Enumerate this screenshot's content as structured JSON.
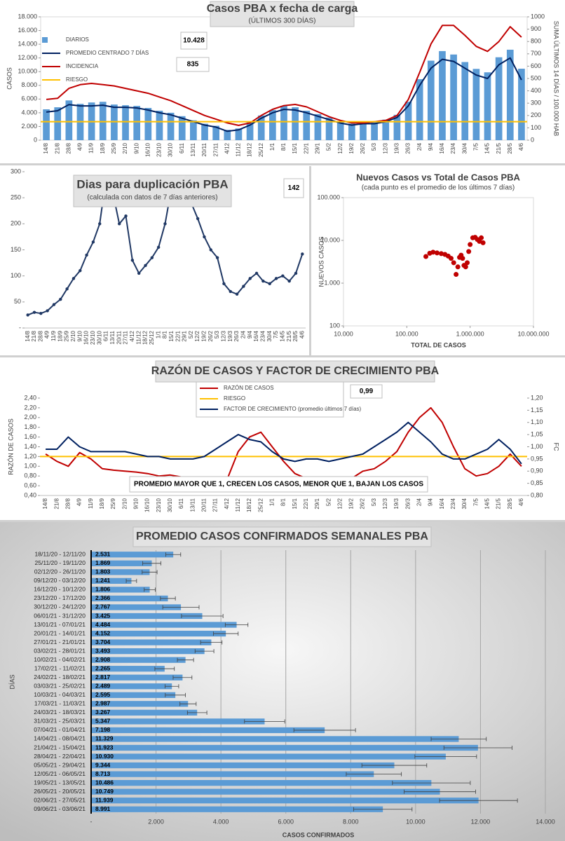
{
  "chart_data": [
    {
      "type": "combo",
      "title": "Casos  PBA x fecha de carga",
      "subtitle": "(ÚLTIMOS 300 DÍAS)",
      "annotations": [
        "10.428",
        "835"
      ],
      "ylabel": "CASOS",
      "y2label": "SUMA ÚLTIMOS 14 DÍAS / 100.000 HAB",
      "categories": [
        "14/8",
        "21/8",
        "28/8",
        "4/9",
        "11/9",
        "18/9",
        "25/9",
        "2/10",
        "9/10",
        "16/10",
        "23/10",
        "30/10",
        "6/11",
        "13/11",
        "20/11",
        "27/11",
        "4/12",
        "11/12",
        "18/12",
        "25/12",
        "1/1",
        "8/1",
        "15/1",
        "22/1",
        "29/1",
        "5/2",
        "12/2",
        "19/2",
        "26/2",
        "5/3",
        "12/3",
        "19/3",
        "26/3",
        "2/4",
        "9/4",
        "16/4",
        "23/4",
        "30/4",
        "7/5",
        "14/5",
        "21/5",
        "28/5",
        "4/6"
      ],
      "ylim": [
        0,
        18000
      ],
      "yticks": [
        0,
        {
          "value": 2000,
          "label": "2.000"
        },
        {
          "value": 4000,
          "label": "4.000"
        },
        {
          "value": 6000,
          "label": "6.000"
        },
        {
          "value": 8000,
          "label": "8.000"
        },
        {
          "value": 10000,
          "label": "10.000"
        },
        {
          "value": 12000,
          "label": "12.000"
        },
        {
          "value": 14000,
          "label": "14.000"
        },
        {
          "value": 16000,
          "label": "16.000"
        },
        {
          "value": 18000,
          "label": "18.000"
        }
      ],
      "y2lim": [
        0,
        1000
      ],
      "y2ticks": [
        0,
        100,
        200,
        300,
        400,
        500,
        600,
        700,
        800,
        900,
        1000
      ],
      "series": [
        {
          "name": "DIARIOS",
          "type": "bar",
          "color": "#5b9bd5",
          "values": [
            4500,
            4800,
            5800,
            5300,
            5500,
            5600,
            5200,
            5100,
            5000,
            4700,
            4300,
            4000,
            3500,
            2900,
            2400,
            2100,
            1500,
            1700,
            2600,
            3600,
            4400,
            5000,
            4800,
            4300,
            3800,
            3300,
            2800,
            2400,
            2700,
            2600,
            3000,
            3700,
            5600,
            8900,
            11600,
            13000,
            12500,
            11400,
            10400,
            9900,
            12100,
            13200,
            10428
          ]
        },
        {
          "name": "PROMEDIO CENTRADO 7 DÍAS",
          "type": "line",
          "color": "#002060",
          "values": [
            4100,
            4300,
            5200,
            5000,
            5000,
            5100,
            4800,
            4800,
            4700,
            4400,
            4000,
            3700,
            3200,
            2700,
            2200,
            1900,
            1300,
            1500,
            2200,
            3200,
            4000,
            4500,
            4400,
            4000,
            3500,
            3000,
            2500,
            2200,
            2400,
            2400,
            2700,
            3300,
            5000,
            8000,
            10500,
            11800,
            11500,
            10500,
            9500,
            9000,
            11000,
            12000,
            8800
          ]
        },
        {
          "name": "INCIDENCIA",
          "type": "line",
          "axis": "y2",
          "color": "#c00000",
          "values": [
            330,
            340,
            420,
            450,
            460,
            450,
            440,
            420,
            400,
            380,
            350,
            320,
            280,
            240,
            200,
            170,
            140,
            120,
            140,
            200,
            250,
            280,
            290,
            270,
            230,
            190,
            160,
            140,
            140,
            150,
            160,
            200,
            330,
            550,
            780,
            930,
            930,
            850,
            760,
            720,
            800,
            920,
            835
          ]
        },
        {
          "name": "RIESGO",
          "color": "#ffc000",
          "axis": "y2",
          "value": 150
        }
      ]
    },
    {
      "type": "line",
      "title": "Dias para duplicación PBA",
      "subtitle": "(calculada con datos de 7 días anteriores)",
      "annotations": [
        "142"
      ],
      "categories": [
        "14/8",
        "21/8",
        "28/8",
        "4/9",
        "11/9",
        "18/9",
        "25/9",
        "2/10",
        "9/10",
        "16/10",
        "23/10",
        "30/10",
        "6/11",
        "13/11",
        "20/11",
        "27/11",
        "4/12",
        "11/12",
        "18/12",
        "25/12",
        "1/1",
        "8/1",
        "15/1",
        "22/1",
        "29/1",
        "5/2",
        "12/2",
        "19/2",
        "26/2",
        "5/3",
        "12/3",
        "19/3",
        "26/3",
        "2/4",
        "9/4",
        "16/4",
        "23/4",
        "30/4",
        "7/5",
        "14/5",
        "21/5",
        "28/5",
        "4/6"
      ],
      "ylim": [
        0,
        300
      ],
      "yticks": [
        {
          "value": 0,
          "label": "-"
        },
        50,
        100,
        150,
        200,
        250,
        300
      ],
      "series": [
        {
          "color": "#203864",
          "markers": true,
          "values": [
            25,
            30,
            28,
            33,
            45,
            55,
            75,
            95,
            110,
            140,
            165,
            200,
            290,
            260,
            200,
            215,
            130,
            105,
            120,
            135,
            155,
            200,
            270,
            290,
            260,
            240,
            210,
            175,
            150,
            135,
            85,
            70,
            65,
            80,
            95,
            105,
            90,
            85,
            95,
            100,
            90,
            105,
            142
          ]
        }
      ]
    },
    {
      "type": "scatter",
      "title": "Nuevos Casos vs Total de Casos PBA",
      "subtitle": "(cada punto es el promedio de los últimos 7 días)",
      "xlabel": "TOTAL DE CASOS",
      "ylabel": "NUEVOS CASOS",
      "log_x": true,
      "log_y": true,
      "color": "#c00000",
      "xlim": [
        10000,
        10000000
      ],
      "xticks": [
        {
          "value": 10000,
          "label": "10.000"
        },
        {
          "value": 100000,
          "label": "100.000"
        },
        {
          "value": 1000000,
          "label": "1.000.000"
        },
        {
          "value": 10000000,
          "label": "10.000.000"
        }
      ],
      "ylim": [
        100,
        100000
      ],
      "yticks": [
        100,
        {
          "value": 1000,
          "label": "1.000"
        },
        {
          "value": 10000,
          "label": "10.000"
        },
        {
          "value": 100000,
          "label": "100.000"
        }
      ],
      "x": [
        200000,
        230000,
        260000,
        300000,
        350000,
        400000,
        450000,
        500000,
        550000,
        600000,
        640000,
        680000,
        720000,
        760000,
        800000,
        850000,
        900000,
        950000,
        1000000,
        1100000,
        1200000,
        1300000,
        1400000,
        1500000,
        1600000
      ],
      "y": [
        4200,
        5000,
        5300,
        5100,
        4900,
        4700,
        4300,
        3800,
        3000,
        1600,
        2400,
        4000,
        4500,
        3800,
        2600,
        2400,
        3000,
        5500,
        8000,
        11500,
        11800,
        10500,
        9500,
        11500,
        8800
      ]
    },
    {
      "type": "line",
      "title": "RAZÓN DE CASOS Y FACTOR DE CRECIMIENTO PBA",
      "annotations": [
        "0,99",
        "PROMEDIO MAYOR QUE 1, CRECEN LOS CASOS, MENOR QUE 1, BAJAN LOS CASOS"
      ],
      "ylabel": "RAZÓN DE CASOS",
      "y2label": "FC",
      "categories": [
        "14/8",
        "21/8",
        "28/8",
        "4/9",
        "11/9",
        "18/9",
        "25/9",
        "2/10",
        "9/10",
        "16/10",
        "23/10",
        "30/10",
        "6/11",
        "13/11",
        "20/11",
        "27/11",
        "4/12",
        "11/12",
        "18/12",
        "25/12",
        "1/1",
        "8/1",
        "15/1",
        "22/1",
        "29/1",
        "5/2",
        "12/2",
        "19/2",
        "26/2",
        "5/3",
        "12/3",
        "19/3",
        "26/3",
        "2/4",
        "9/4",
        "16/4",
        "23/4",
        "30/4",
        "7/5",
        "14/5",
        "21/5",
        "28/5",
        "4/6"
      ],
      "ylim": [
        0.4,
        2.4
      ],
      "yticks": [
        {
          "value": 0.4,
          "label": "0,40"
        },
        {
          "value": 0.6,
          "label": "0,60"
        },
        {
          "value": 0.8,
          "label": "0,80"
        },
        {
          "value": 1.0,
          "label": "1,00"
        },
        {
          "value": 1.2,
          "label": "1,20"
        },
        {
          "value": 1.4,
          "label": "1,40"
        },
        {
          "value": 1.6,
          "label": "1,60"
        },
        {
          "value": 1.8,
          "label": "1,80"
        },
        {
          "value": 2.0,
          "label": "2,00"
        },
        {
          "value": 2.2,
          "label": "2,20"
        },
        {
          "value": 2.4,
          "label": "2,40"
        }
      ],
      "y2lim": [
        0.8,
        1.2
      ],
      "y2ticks": [
        {
          "value": 0.8,
          "label": "0,80"
        },
        {
          "value": 0.85,
          "label": "0,85"
        },
        {
          "value": 0.9,
          "label": "0,90"
        },
        {
          "value": 0.95,
          "label": "0,95"
        },
        {
          "value": 1.0,
          "label": "1,00"
        },
        {
          "value": 1.05,
          "label": "1,05"
        },
        {
          "value": 1.1,
          "label": "1,10"
        },
        {
          "value": 1.15,
          "label": "1,15"
        },
        {
          "value": 1.2,
          "label": "1,20"
        }
      ],
      "series": [
        {
          "name": "RAZÓN DE CASOS",
          "color": "#c00000",
          "values": [
            1.25,
            1.1,
            1.0,
            1.28,
            1.15,
            0.95,
            0.92,
            0.9,
            0.88,
            0.85,
            0.8,
            0.82,
            0.78,
            0.7,
            0.65,
            0.6,
            0.72,
            1.3,
            1.6,
            1.7,
            1.4,
            1.1,
            0.85,
            0.75,
            0.7,
            0.7,
            0.7,
            0.75,
            0.9,
            0.95,
            1.1,
            1.3,
            1.7,
            2.0,
            2.2,
            1.9,
            1.4,
            0.95,
            0.8,
            0.85,
            1.0,
            1.25,
            1.0
          ]
        },
        {
          "name": "RIESGO",
          "color": "#ffc000",
          "value": 1.2
        },
        {
          "name": "FACTOR DE CRECIMIENTO (promedio últimos 7 días)",
          "color": "#002060",
          "axis": "y2",
          "values": [
            0.99,
            0.99,
            1.04,
            1.0,
            0.98,
            0.98,
            0.98,
            0.98,
            0.97,
            0.96,
            0.96,
            0.95,
            0.95,
            0.95,
            0.96,
            0.99,
            1.02,
            1.05,
            1.03,
            1.02,
            0.98,
            0.95,
            0.94,
            0.95,
            0.95,
            0.94,
            0.95,
            0.96,
            0.97,
            1.0,
            1.03,
            1.06,
            1.1,
            1.06,
            1.02,
            0.97,
            0.95,
            0.95,
            0.97,
            0.99,
            1.03,
            0.99,
            0.93
          ]
        }
      ]
    },
    {
      "type": "hbar",
      "title": "PROMEDIO CASOS CONFIRMADOS SEMANALES PBA",
      "xlabel": "CASOS CONFIRMADOS",
      "ylabel": "DÍAS",
      "color": "#5b9bd5",
      "grid": true,
      "xlim": [
        0,
        14000
      ],
      "xticks": [
        {
          "value": 0,
          "label": "-"
        },
        {
          "value": 2000,
          "label": "2.000"
        },
        {
          "value": 4000,
          "label": "4.000"
        },
        {
          "value": 6000,
          "label": "6.000"
        },
        {
          "value": 8000,
          "label": "8.000"
        },
        {
          "value": 10000,
          "label": "10.000"
        },
        {
          "value": 12000,
          "label": "12.000"
        },
        {
          "value": 14000,
          "label": "14.000"
        }
      ],
      "categories": [
        "18/11/20 - 12/11/20",
        "25/11/20 - 19/11/20",
        "02/12/20 - 26/11/20",
        "09/12/20 - 03/12/20",
        "16/12/20 - 10/12/20",
        "23/12/20 - 17/12/20",
        "30/12/20 - 24/12/20",
        "06/01/21 - 31/12/20",
        "13/01/21 - 07/01/21",
        "20/01/21 - 14/01/21",
        "27/01/21 - 21/01/21",
        "03/02/21 - 28/01/21",
        "10/02/21 - 04/02/21",
        "17/02/21 - 11/02/21",
        "24/02/21 - 18/02/21",
        "03/03/21 - 25/02/21",
        "10/03/21 - 04/03/21",
        "17/03/21 - 11/03/21",
        "24/03/21 - 18/03/21",
        "31/03/21 - 25/03/21",
        "07/04/21 - 01/04/21",
        "14/04/21 - 08/04/21",
        "21/04/21 - 15/04/21",
        "28/04/21 - 22/04/21",
        "05/05/21 - 29/04/21",
        "12/05/21 - 06/05/21",
        "19/05/21 - 13/05/21",
        "26/05/21 - 20/05/21",
        "02/06/21 - 27/05/21",
        "09/06/21 - 03/06/21"
      ],
      "values": [
        2531,
        1869,
        1803,
        1241,
        1806,
        2366,
        2767,
        3425,
        4484,
        4152,
        3704,
        3493,
        2908,
        2265,
        2817,
        2489,
        2595,
        2987,
        3267,
        5347,
        7198,
        11329,
        11923,
        10930,
        9344,
        8713,
        10486,
        10749,
        11939,
        8991
      ],
      "value_labels": [
        "2.531",
        "1.869",
        "1.803",
        "1.241",
        "1.806",
        "2.366",
        "2.767",
        "3.425",
        "4.484",
        "4.152",
        "3.704",
        "3.493",
        "2.908",
        "2.265",
        "2.817",
        "2.489",
        "2.595",
        "2.987",
        "3.267",
        "5.347",
        "7.198",
        "11.329",
        "11.923",
        "10.930",
        "9.344",
        "8.713",
        "10.486",
        "10.749",
        "11.939",
        "8.991"
      ],
      "errors": [
        230,
        280,
        230,
        160,
        170,
        230,
        560,
        640,
        350,
        380,
        330,
        290,
        250,
        300,
        290,
        210,
        310,
        250,
        300,
        620,
        950,
        850,
        1050,
        950,
        1000,
        850,
        1200,
        1100,
        1200,
        900
      ]
    }
  ]
}
